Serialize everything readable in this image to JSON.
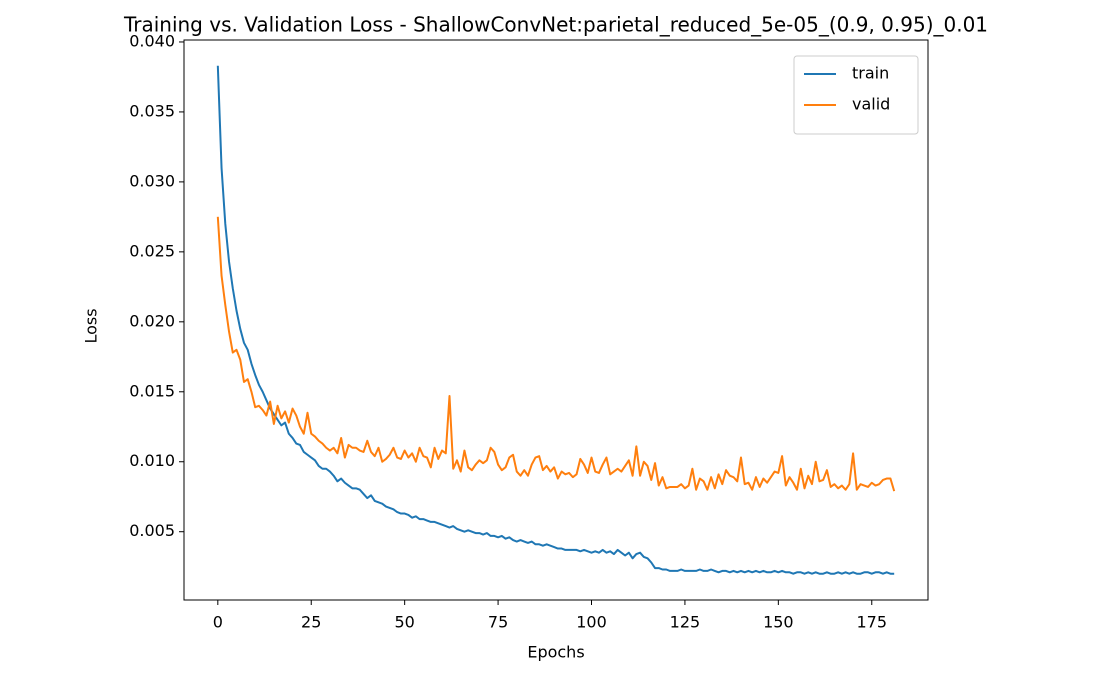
{
  "chart_data": {
    "type": "line",
    "title": "Training vs. Validation Loss - ShallowConvNet:parietal_reduced_5e-05_(0.9, 0.95)_0.01",
    "xlabel": "Epochs",
    "ylabel": "Loss",
    "x": [
      0,
      1,
      2,
      3,
      4,
      5,
      6,
      7,
      8,
      9,
      10,
      11,
      12,
      13,
      14,
      15,
      16,
      17,
      18,
      19,
      20,
      21,
      22,
      23,
      24,
      25,
      26,
      27,
      28,
      29,
      30,
      31,
      32,
      33,
      34,
      35,
      36,
      37,
      38,
      39,
      40,
      41,
      42,
      43,
      44,
      45,
      46,
      47,
      48,
      49,
      50,
      51,
      52,
      53,
      54,
      55,
      56,
      57,
      58,
      59,
      60,
      61,
      62,
      63,
      64,
      65,
      66,
      67,
      68,
      69,
      70,
      71,
      72,
      73,
      74,
      75,
      76,
      77,
      78,
      79,
      80,
      81,
      82,
      83,
      84,
      85,
      86,
      87,
      88,
      89,
      90,
      91,
      92,
      93,
      94,
      95,
      96,
      97,
      98,
      99,
      100,
      101,
      102,
      103,
      104,
      105,
      106,
      107,
      108,
      109,
      110,
      111,
      112,
      113,
      114,
      115,
      116,
      117,
      118,
      119,
      120,
      121,
      122,
      123,
      124,
      125,
      126,
      127,
      128,
      129,
      130,
      131,
      132,
      133,
      134,
      135,
      136,
      137,
      138,
      139,
      140,
      141,
      142,
      143,
      144,
      145,
      146,
      147,
      148,
      149,
      150,
      151,
      152,
      153,
      154,
      155,
      156,
      157,
      158,
      159,
      160,
      161,
      162,
      163,
      164,
      165,
      166,
      167,
      168,
      169,
      170,
      171,
      172,
      173,
      174,
      175,
      176,
      177,
      178,
      179,
      180,
      181
    ],
    "series": [
      {
        "name": "train",
        "color": "#1f77b4",
        "values": [
          0.0383,
          0.031,
          0.027,
          0.0243,
          0.0224,
          0.0208,
          0.0195,
          0.0185,
          0.018,
          0.017,
          0.0162,
          0.0155,
          0.015,
          0.0144,
          0.0138,
          0.0134,
          0.013,
          0.0126,
          0.0128,
          0.012,
          0.0117,
          0.0113,
          0.0112,
          0.0107,
          0.0105,
          0.0103,
          0.0101,
          0.0097,
          0.0095,
          0.0095,
          0.0093,
          0.009,
          0.0086,
          0.0088,
          0.0085,
          0.0083,
          0.0081,
          0.0081,
          0.008,
          0.0077,
          0.0074,
          0.0076,
          0.0072,
          0.0071,
          0.007,
          0.0068,
          0.0067,
          0.0066,
          0.0064,
          0.0063,
          0.0063,
          0.0062,
          0.006,
          0.0061,
          0.0059,
          0.0059,
          0.0058,
          0.0057,
          0.0057,
          0.0056,
          0.0055,
          0.0054,
          0.0053,
          0.0054,
          0.0052,
          0.0051,
          0.005,
          0.0051,
          0.005,
          0.0049,
          0.0049,
          0.0048,
          0.0049,
          0.0047,
          0.0047,
          0.0046,
          0.0047,
          0.0045,
          0.0046,
          0.0044,
          0.0043,
          0.0044,
          0.0043,
          0.0042,
          0.0043,
          0.0041,
          0.0041,
          0.004,
          0.0041,
          0.004,
          0.0039,
          0.0038,
          0.0038,
          0.0037,
          0.0037,
          0.0037,
          0.0037,
          0.0036,
          0.0037,
          0.0036,
          0.0035,
          0.0036,
          0.0035,
          0.0037,
          0.0035,
          0.0036,
          0.0034,
          0.0037,
          0.0035,
          0.0033,
          0.0035,
          0.0031,
          0.0034,
          0.0035,
          0.0032,
          0.0031,
          0.0028,
          0.0024,
          0.0024,
          0.0023,
          0.0023,
          0.0022,
          0.0022,
          0.0022,
          0.0023,
          0.0022,
          0.0022,
          0.0022,
          0.0022,
          0.0023,
          0.0022,
          0.0022,
          0.0023,
          0.0022,
          0.0021,
          0.0022,
          0.0022,
          0.0021,
          0.0022,
          0.0021,
          0.0022,
          0.0021,
          0.0022,
          0.0021,
          0.0022,
          0.0021,
          0.0022,
          0.0021,
          0.0021,
          0.0022,
          0.0021,
          0.0022,
          0.0021,
          0.0021,
          0.002,
          0.0021,
          0.0021,
          0.002,
          0.0021,
          0.002,
          0.0021,
          0.002,
          0.002,
          0.0021,
          0.002,
          0.002,
          0.0021,
          0.002,
          0.0021,
          0.002,
          0.0021,
          0.002,
          0.002,
          0.0021,
          0.0021,
          0.002,
          0.0021,
          0.0021,
          0.002,
          0.0021,
          0.002,
          0.002
        ]
      },
      {
        "name": "valid",
        "color": "#ff7f0e",
        "values": [
          0.0275,
          0.0233,
          0.0212,
          0.0193,
          0.0178,
          0.018,
          0.0173,
          0.0157,
          0.0159,
          0.015,
          0.0139,
          0.014,
          0.0137,
          0.0133,
          0.0143,
          0.0127,
          0.014,
          0.0131,
          0.0136,
          0.0128,
          0.0138,
          0.0133,
          0.0125,
          0.012,
          0.0135,
          0.012,
          0.0118,
          0.0115,
          0.0113,
          0.011,
          0.0108,
          0.011,
          0.0106,
          0.0117,
          0.0103,
          0.0112,
          0.011,
          0.011,
          0.0108,
          0.0107,
          0.0115,
          0.0107,
          0.0104,
          0.011,
          0.01,
          0.0102,
          0.0105,
          0.011,
          0.0103,
          0.0102,
          0.0108,
          0.0103,
          0.0106,
          0.01,
          0.011,
          0.0104,
          0.0103,
          0.0096,
          0.011,
          0.0102,
          0.0108,
          0.0106,
          0.0147,
          0.0095,
          0.0101,
          0.0093,
          0.0108,
          0.0096,
          0.0094,
          0.0098,
          0.0101,
          0.0099,
          0.0101,
          0.011,
          0.0107,
          0.0098,
          0.0094,
          0.0096,
          0.0103,
          0.0105,
          0.0093,
          0.009,
          0.0094,
          0.009,
          0.0098,
          0.0103,
          0.0104,
          0.0094,
          0.0097,
          0.0093,
          0.0096,
          0.0088,
          0.0093,
          0.0091,
          0.0092,
          0.0089,
          0.0091,
          0.0102,
          0.0098,
          0.0092,
          0.0103,
          0.0093,
          0.0092,
          0.0098,
          0.0103,
          0.0091,
          0.0093,
          0.0095,
          0.0093,
          0.0097,
          0.0101,
          0.009,
          0.0111,
          0.009,
          0.01,
          0.0097,
          0.0087,
          0.0099,
          0.0083,
          0.0089,
          0.0081,
          0.0082,
          0.0082,
          0.0082,
          0.0084,
          0.0081,
          0.0083,
          0.0095,
          0.008,
          0.0088,
          0.0086,
          0.008,
          0.0089,
          0.0081,
          0.0091,
          0.0084,
          0.0094,
          0.009,
          0.0089,
          0.0086,
          0.0103,
          0.0084,
          0.0085,
          0.008,
          0.0089,
          0.0082,
          0.0088,
          0.0085,
          0.0089,
          0.0093,
          0.0092,
          0.0104,
          0.0083,
          0.0089,
          0.0085,
          0.008,
          0.0095,
          0.0081,
          0.009,
          0.0084,
          0.01,
          0.0086,
          0.0087,
          0.0094,
          0.0082,
          0.0084,
          0.0081,
          0.0083,
          0.008,
          0.0084,
          0.0106,
          0.008,
          0.0084,
          0.0083,
          0.0082,
          0.0085,
          0.0083,
          0.0084,
          0.0087,
          0.0088,
          0.0088,
          0.0079
        ]
      }
    ],
    "xlim": [
      -9.05,
      190.05
    ],
    "xticks": [
      0,
      25,
      50,
      75,
      100,
      125,
      150,
      175
    ],
    "ylim": [
      0.00012,
      0.04014
    ],
    "yticks": [
      0.005,
      {
        "value": 0.01,
        "label": "0.010"
      },
      0.015,
      {
        "value": 0.02,
        "label": "0.020"
      },
      0.025,
      {
        "value": 0.03,
        "label": "0.030"
      },
      0.035,
      {
        "value": 0.04,
        "label": "0.040"
      }
    ],
    "legend": "upper right"
  }
}
